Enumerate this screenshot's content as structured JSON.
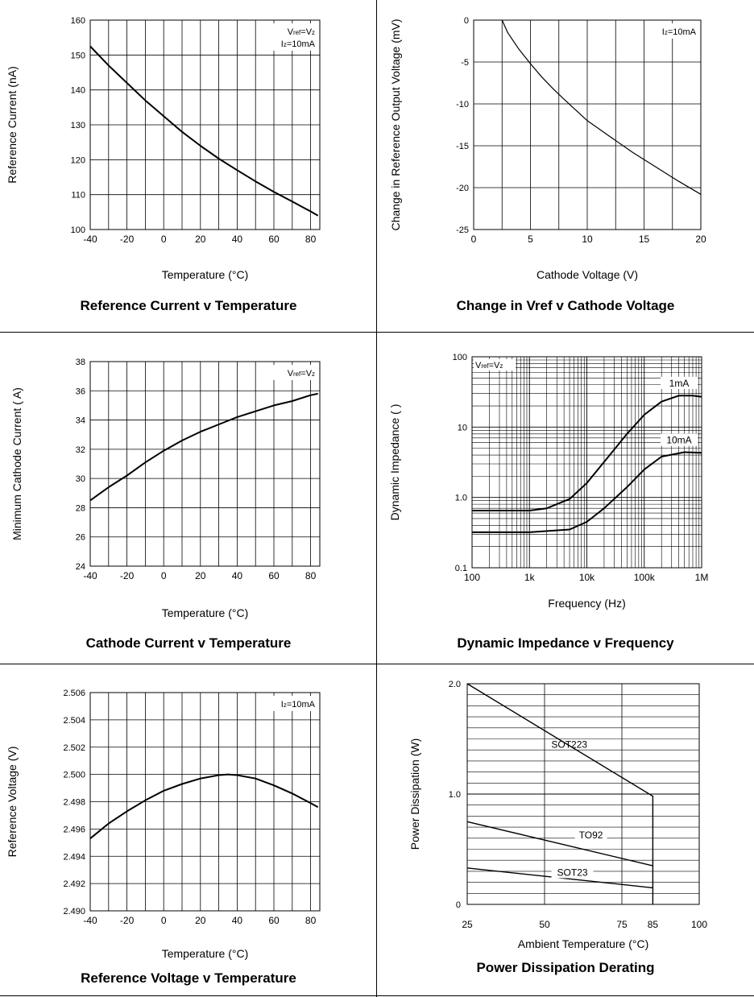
{
  "chart_data": [
    {
      "type": "line",
      "title": "Reference Current v Temperature",
      "xlabel": "Temperature (°C)",
      "ylabel": "Reference Current (nA)",
      "xlim": [
        -40,
        85
      ],
      "ylim": [
        100,
        160
      ],
      "xticks": [
        -40,
        -20,
        0,
        20,
        40,
        60,
        80
      ],
      "yticks": [
        100,
        110,
        120,
        130,
        140,
        150,
        160
      ],
      "annotation": [
        "Vref=Vz",
        "Iz=10mA"
      ],
      "series": [
        {
          "x": [
            -40,
            -30,
            -20,
            -10,
            0,
            10,
            20,
            30,
            40,
            50,
            60,
            70,
            80,
            84
          ],
          "y": [
            152.5,
            147,
            142,
            137,
            132.5,
            128,
            124,
            120.3,
            117,
            113.8,
            110.8,
            108,
            105.2,
            104
          ]
        }
      ]
    },
    {
      "type": "line",
      "title": "Change in Vref v Cathode Voltage",
      "xlabel": "Cathode Voltage (V)",
      "ylabel": "Change in Reference Output Voltage (mV)",
      "xlim": [
        0,
        20
      ],
      "ylim": [
        -25,
        0
      ],
      "xticks": [
        0,
        5,
        10,
        15,
        20
      ],
      "yticks": [
        0,
        -5,
        -10,
        -15,
        -20,
        -25
      ],
      "annotation": [
        "Iz=10mA"
      ],
      "series": [
        {
          "x": [
            2.5,
            3,
            4,
            5,
            6,
            7,
            8,
            10,
            12,
            14,
            16,
            18,
            20
          ],
          "y": [
            0,
            -1.5,
            -3.5,
            -5.2,
            -6.8,
            -8.2,
            -9.5,
            -12,
            -13.9,
            -15.8,
            -17.5,
            -19.2,
            -20.8
          ]
        }
      ]
    },
    {
      "type": "line",
      "title": "Cathode Current v Temperature",
      "xlabel": "Temperature (°C)",
      "ylabel": "Minimum Cathode Current ( A)",
      "xlim": [
        -40,
        85
      ],
      "ylim": [
        24,
        38
      ],
      "xticks": [
        -40,
        -20,
        0,
        20,
        40,
        60,
        80
      ],
      "yticks": [
        24,
        26,
        28,
        30,
        32,
        34,
        36,
        38
      ],
      "annotation": [
        "Vref=Vz"
      ],
      "series": [
        {
          "x": [
            -40,
            -30,
            -20,
            -10,
            0,
            10,
            20,
            30,
            40,
            50,
            60,
            70,
            80,
            84
          ],
          "y": [
            28.5,
            29.4,
            30.2,
            31.1,
            31.9,
            32.6,
            33.2,
            33.7,
            34.2,
            34.6,
            35,
            35.3,
            35.7,
            35.8
          ]
        }
      ]
    },
    {
      "type": "line",
      "title": "Dynamic Impedance v Frequency",
      "xlabel": "Frequency (Hz)",
      "ylabel": "Dynamic Impedance ( )",
      "xscale": "log",
      "yscale": "log",
      "xlim": [
        100,
        1000000
      ],
      "ylim": [
        0.1,
        100
      ],
      "xticks": [
        "100",
        "1k",
        "10k",
        "100k",
        "1M"
      ],
      "yticks": [
        "0.1",
        "1.0",
        "10",
        "100"
      ],
      "annotation": [
        "Vref=Vz"
      ],
      "series": [
        {
          "name": "1mA",
          "x": [
            100,
            1000,
            2000,
            5000,
            10000,
            20000,
            50000,
            100000,
            200000,
            400000,
            700000,
            1000000
          ],
          "y": [
            0.65,
            0.65,
            0.7,
            0.95,
            1.6,
            3.2,
            8,
            15,
            23,
            28,
            28,
            27
          ]
        },
        {
          "name": "10mA",
          "x": [
            100,
            1000,
            5000,
            10000,
            20000,
            50000,
            100000,
            200000,
            500000,
            1000000
          ],
          "y": [
            0.32,
            0.32,
            0.35,
            0.45,
            0.7,
            1.4,
            2.5,
            3.8,
            4.4,
            4.3
          ]
        }
      ]
    },
    {
      "type": "line",
      "title": "Reference Voltage v Temperature",
      "xlabel": "Temperature (°C)",
      "ylabel": "Reference Voltage (V)",
      "xlim": [
        -40,
        85
      ],
      "ylim": [
        2.49,
        2.506
      ],
      "xticks": [
        -40,
        -20,
        0,
        20,
        40,
        60,
        80
      ],
      "yticks": [
        "2.490",
        "2.492",
        "2.494",
        "2.496",
        "2.498",
        "2.500",
        "2.502",
        "2.504",
        "2.506"
      ],
      "annotation": [
        "Iz=10mA"
      ],
      "series": [
        {
          "x": [
            -40,
            -30,
            -20,
            -10,
            0,
            10,
            20,
            30,
            35,
            40,
            50,
            60,
            70,
            80,
            84
          ],
          "y": [
            2.4953,
            2.4964,
            2.4973,
            2.4981,
            2.4988,
            2.4993,
            2.4997,
            2.49995,
            2.5,
            2.49995,
            2.4997,
            2.4992,
            2.4986,
            2.4979,
            2.4976
          ]
        }
      ]
    },
    {
      "type": "line",
      "title": "Power Dissipation Derating",
      "xlabel": "Ambient Temperature (°C)",
      "ylabel": "Power Dissipation (W)",
      "xlim": [
        25,
        100
      ],
      "ylim": [
        0,
        2
      ],
      "xticks": [
        25,
        50,
        75,
        85,
        100
      ],
      "yticks": [
        "0",
        "1.0",
        "2.0"
      ],
      "series": [
        {
          "name": "SOT223",
          "x": [
            25,
            85,
            85
          ],
          "y": [
            2.0,
            0.98,
            0
          ]
        },
        {
          "name": "TO92",
          "x": [
            25,
            85
          ],
          "y": [
            0.75,
            0.35
          ]
        },
        {
          "name": "SOT23",
          "x": [
            25,
            85
          ],
          "y": [
            0.33,
            0.15
          ]
        }
      ]
    }
  ]
}
